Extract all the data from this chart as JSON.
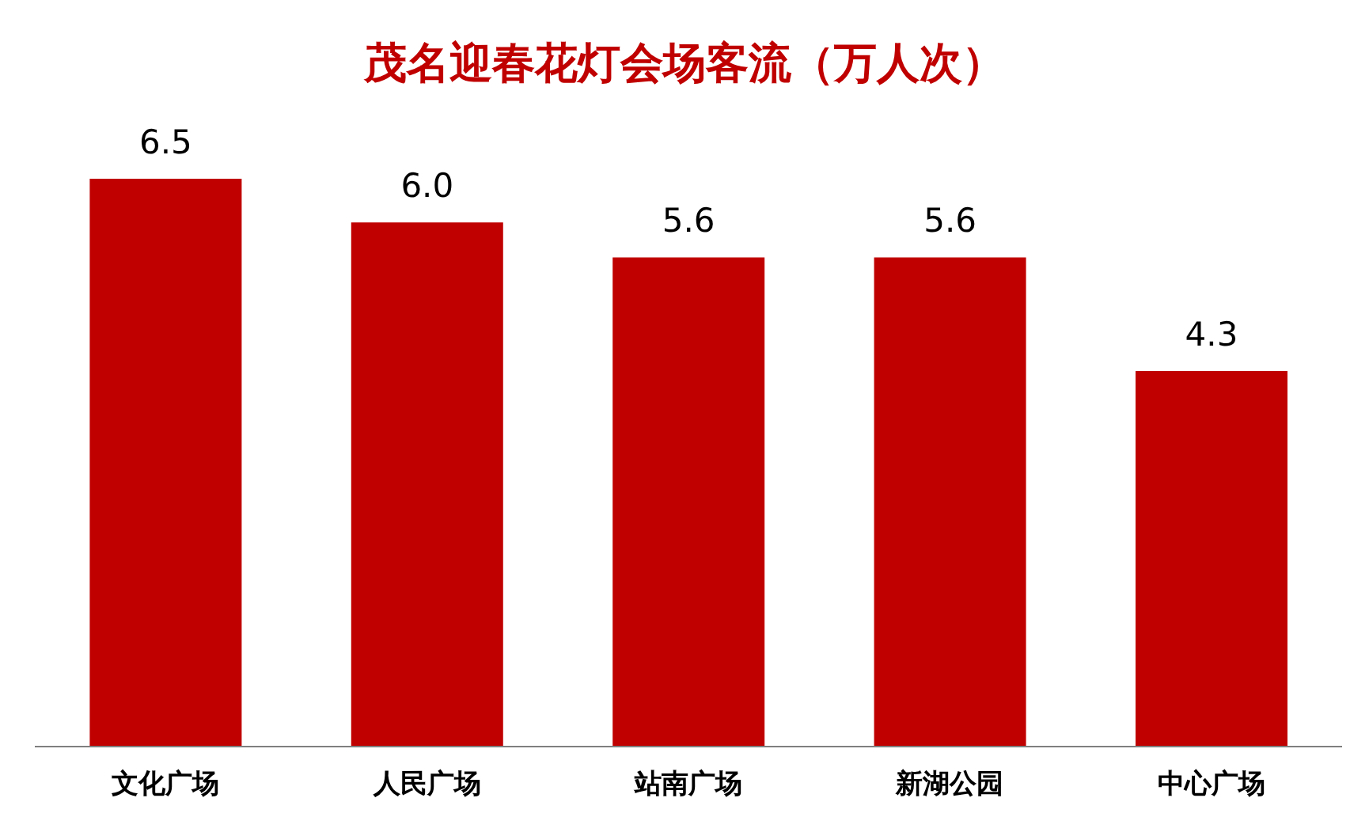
{
  "chart_data": {
    "type": "bar",
    "title": "茂名迎春花灯会场客流（万人次）",
    "categories": [
      "文化广场",
      "人民广场",
      "站南广场",
      "新湖公园",
      "中心广场"
    ],
    "values": [
      6.5,
      6.0,
      5.6,
      5.6,
      4.3
    ],
    "value_labels": [
      "6.5",
      "6.0",
      "5.6",
      "5.6",
      "4.3"
    ],
    "color": "#c00000",
    "tick_labels": "x",
    "grid": false,
    "legend": false
  }
}
